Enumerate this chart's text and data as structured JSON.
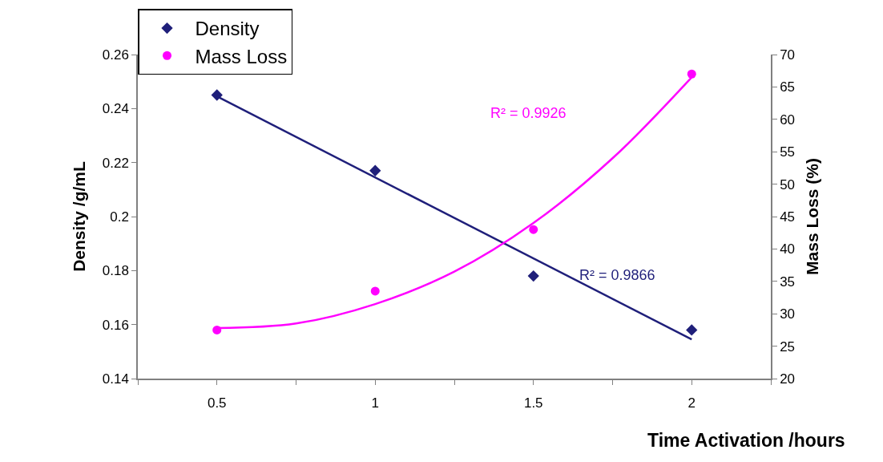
{
  "chart_data": {
    "type": "scatter",
    "xlabel": "Time Activation /hours",
    "ylabel": "Density /g/mL",
    "y2label": "Mass Loss (%)",
    "x": [
      0.5,
      1,
      1.5,
      2
    ],
    "series": [
      {
        "name": "Density",
        "color": "#1f1f7a",
        "values": [
          0.245,
          0.217,
          0.178,
          0.158
        ],
        "marker": "diamond"
      },
      {
        "name": "Mass Loss",
        "color": "#ff00ff",
        "values": [
          27.5,
          33.5,
          43,
          67
        ],
        "axis": "y2",
        "marker": "circle"
      },
      {
        "type": "line",
        "color": "#1f1f7a",
        "x": [
          0.5,
          2
        ],
        "values": [
          0.2445,
          0.1545
        ]
      },
      {
        "type": "line",
        "color": "#ff00ff",
        "axis": "y2",
        "x": [
          0.5,
          0.75,
          1,
          1.25,
          1.5,
          1.75,
          2
        ],
        "values": [
          27.8,
          28.5,
          31.5,
          36.5,
          44,
          54,
          66.5
        ]
      }
    ],
    "xlim": [
      0.25,
      2.25
    ],
    "xticks": [
      {
        "value": 0.25,
        "label": null
      },
      0.5,
      {
        "value": 0.75,
        "label": null
      },
      1,
      {
        "value": 1.25,
        "label": null
      },
      1.5,
      {
        "value": 1.75,
        "label": null
      },
      2,
      {
        "value": 2.25,
        "label": null
      }
    ],
    "ylim": [
      0.14,
      0.26
    ],
    "yticks": [
      0.14,
      0.16,
      0.18,
      0.2,
      0.22,
      0.24,
      0.26
    ],
    "y2lim": [
      20,
      70
    ],
    "y2ticks": [
      20,
      25,
      30,
      35,
      40,
      45,
      50,
      55,
      60,
      65,
      70
    ],
    "annotations": [
      "R² = 0.9926",
      "R² = 0.9866"
    ],
    "legend": "top left"
  }
}
